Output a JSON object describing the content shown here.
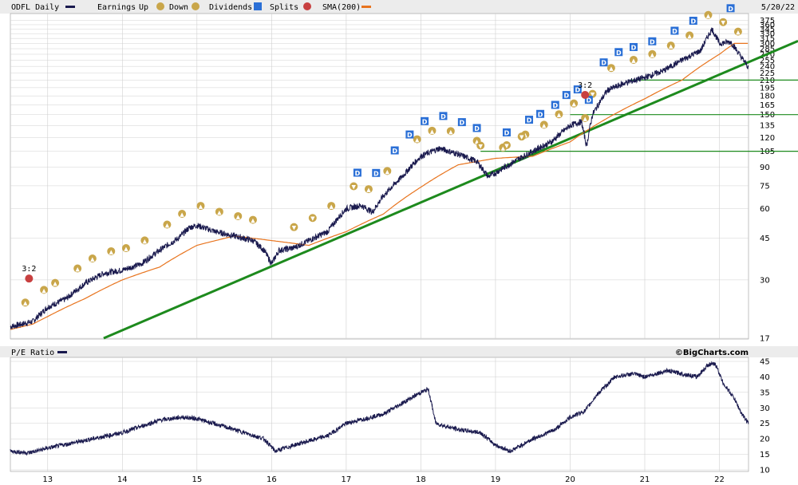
{
  "header": {
    "symbol_label": "ODFL Daily",
    "earnings_label": "Earnings",
    "up_label": "Up",
    "down_label": "Down",
    "dividends_label": "Dividends",
    "splits_label": "Splits",
    "sma_label": "SMA(200)",
    "date": "5/20/22"
  },
  "lower": {
    "title": "P/E Ratio",
    "credit": "©BigCharts.com"
  },
  "colors": {
    "price": "#1a1a4e",
    "sma": "#e8741e",
    "trend": "#1d8a1d",
    "earn_up": "#c9a64a",
    "earn_down": "#c9a64a",
    "dividend": "#2a6fd6",
    "split": "#c84040",
    "grid": "#d0d0d0"
  },
  "chart_data": [
    {
      "type": "line",
      "title": "ODFL Daily",
      "scale": "log",
      "ylim": [
        17,
        380
      ],
      "xlim": [
        2012.5,
        2022.39
      ],
      "ytick_labels": [
        "375",
        "360",
        "345",
        "330",
        "315",
        "300",
        "285",
        "270",
        "255",
        "240",
        "225",
        "210",
        "195",
        "180",
        "165",
        "150",
        "135",
        "120",
        "105",
        "90",
        "75",
        "60",
        "45",
        "30",
        "17"
      ],
      "xtick_labels": [
        "13",
        "14",
        "15",
        "16",
        "17",
        "18",
        "19",
        "20",
        "21",
        "22"
      ],
      "series": [
        {
          "name": "ODFL Daily",
          "x": [
            2012.5,
            2012.8,
            2013.0,
            2013.25,
            2013.5,
            2013.75,
            2014.0,
            2014.25,
            2014.5,
            2014.75,
            2014.9,
            2015.0,
            2015.25,
            2015.5,
            2015.75,
            2015.9,
            2016.0,
            2016.1,
            2016.3,
            2016.5,
            2016.75,
            2017.0,
            2017.2,
            2017.35,
            2017.5,
            2017.75,
            2018.0,
            2018.25,
            2018.5,
            2018.75,
            2018.9,
            2019.0,
            2019.25,
            2019.5,
            2019.75,
            2020.0,
            2020.15,
            2020.22,
            2020.3,
            2020.5,
            2020.75,
            2021.0,
            2021.25,
            2021.5,
            2021.75,
            2021.9,
            2022.0,
            2022.15,
            2022.3,
            2022.39
          ],
          "values": [
            19,
            20,
            23,
            25,
            29,
            32,
            33,
            35,
            40,
            45,
            50,
            51,
            48,
            46,
            44,
            40,
            35,
            40,
            41,
            44,
            48,
            60,
            62,
            58,
            68,
            82,
            100,
            108,
            102,
            95,
            82,
            85,
            95,
            105,
            115,
            135,
            140,
            110,
            150,
            190,
            205,
            215,
            230,
            255,
            280,
            345,
            300,
            305,
            260,
            238
          ]
        },
        {
          "name": "SMA(200)",
          "x": [
            2012.5,
            2012.8,
            2013.0,
            2013.5,
            2014.0,
            2014.5,
            2015.0,
            2015.5,
            2016.0,
            2016.5,
            2017.0,
            2017.5,
            2018.0,
            2018.5,
            2019.0,
            2019.5,
            2020.0,
            2020.5,
            2021.0,
            2021.5,
            2022.0,
            2022.2,
            2022.39
          ],
          "values": [
            18.5,
            19.5,
            21,
            25,
            30,
            34,
            42,
            46,
            44,
            42,
            48,
            57,
            74,
            92,
            98,
            100,
            115,
            145,
            175,
            210,
            270,
            300,
            300
          ]
        },
        {
          "name": "Trend",
          "x": [
            2013.75,
            2022.39
          ],
          "values": [
            17,
            250
          ]
        }
      ],
      "support_levels": [
        105,
        150,
        210
      ],
      "events": {
        "earnings_up_x": [
          2012.7,
          2012.95,
          2013.1,
          2013.4,
          2013.6,
          2013.85,
          2014.05,
          2014.3,
          2014.6,
          2014.8,
          2015.05,
          2015.3,
          2015.55,
          2015.75,
          2016.8,
          2017.3,
          2017.55,
          2017.95,
          2018.15,
          2018.4,
          2018.75,
          2019.1,
          2019.4,
          2019.65,
          2019.85,
          2020.05,
          2020.2,
          2020.55,
          2020.85,
          2021.1,
          2021.35,
          2021.6,
          2021.85,
          2022.25
        ],
        "earnings_down_x": [
          2016.3,
          2016.55,
          2017.1,
          2018.8,
          2019.15,
          2019.35,
          2020.3,
          2022.05
        ],
        "dividends_x": [
          2017.15,
          2017.4,
          2017.65,
          2017.85,
          2018.05,
          2018.3,
          2018.55,
          2018.75,
          2019.15,
          2019.45,
          2019.6,
          2019.8,
          2019.95,
          2020.1,
          2020.25,
          2020.45,
          2020.65,
          2020.85,
          2021.1,
          2021.4,
          2021.65,
          2022.15
        ],
        "splits": [
          {
            "x": 2012.75,
            "label": "3:2"
          },
          {
            "x": 2020.2,
            "label": "3:2"
          }
        ]
      }
    },
    {
      "type": "line",
      "title": "P/E Ratio",
      "ylim": [
        10,
        45
      ],
      "ytick_labels": [
        "45",
        "40",
        "35",
        "30",
        "25",
        "20",
        "15",
        "10"
      ],
      "series": [
        {
          "name": "P/E Ratio",
          "x": [
            2012.5,
            2012.75,
            2013.0,
            2013.5,
            2014.0,
            2014.5,
            2014.8,
            2015.0,
            2015.5,
            2015.9,
            2016.05,
            2016.3,
            2016.75,
            2017.0,
            2017.5,
            2018.0,
            2018.1,
            2018.2,
            2018.5,
            2018.8,
            2019.0,
            2019.2,
            2019.5,
            2019.8,
            2020.0,
            2020.2,
            2020.35,
            2020.6,
            2020.85,
            2021.0,
            2021.3,
            2021.5,
            2021.7,
            2021.85,
            2021.95,
            2022.05,
            2022.2,
            2022.3,
            2022.39
          ],
          "values": [
            16,
            15.5,
            17,
            19.5,
            22,
            26,
            27,
            26.5,
            23,
            20,
            16,
            18,
            21,
            25,
            28,
            35,
            36,
            25,
            23,
            22,
            18,
            16,
            20,
            23,
            27,
            29,
            34,
            40,
            41,
            40,
            42,
            41,
            40,
            44,
            44,
            38,
            33,
            28,
            25
          ]
        }
      ]
    }
  ]
}
